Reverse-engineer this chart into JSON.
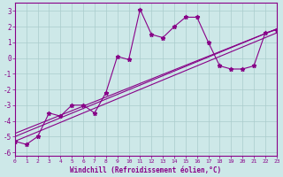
{
  "xlabel": "Windchill (Refroidissement éolien,°C)",
  "background_color": "#cde8e8",
  "grid_color": "#aacccc",
  "line_color": "#880088",
  "spine_color": "#880088",
  "xlim": [
    0,
    23
  ],
  "ylim": [
    -6.2,
    3.5
  ],
  "yticks": [
    -6,
    -5,
    -4,
    -3,
    -2,
    -1,
    0,
    1,
    2,
    3
  ],
  "xticks": [
    0,
    1,
    2,
    3,
    4,
    5,
    6,
    7,
    8,
    9,
    10,
    11,
    12,
    13,
    14,
    15,
    16,
    17,
    18,
    19,
    20,
    21,
    22,
    23
  ],
  "series1_x": [
    0,
    1,
    2,
    3,
    4,
    5,
    6,
    7,
    8,
    9,
    10,
    11,
    12,
    13,
    14,
    15,
    16,
    17,
    18,
    19,
    20,
    21,
    22,
    23
  ],
  "series1_y": [
    -5.3,
    -5.5,
    -5.0,
    -3.5,
    -3.7,
    -3.0,
    -3.0,
    -3.5,
    -2.2,
    0.1,
    -0.1,
    3.1,
    1.5,
    1.3,
    2.0,
    2.6,
    2.6,
    1.0,
    -0.5,
    -0.7,
    -0.7,
    -0.5,
    1.6,
    1.8
  ],
  "series2_x": [
    0,
    23
  ],
  "series2_y": [
    -5.0,
    1.85
  ],
  "series3_x": [
    0,
    23
  ],
  "series3_y": [
    -4.8,
    1.85
  ],
  "series4_x": [
    0,
    23
  ],
  "series4_y": [
    -5.3,
    1.6
  ]
}
